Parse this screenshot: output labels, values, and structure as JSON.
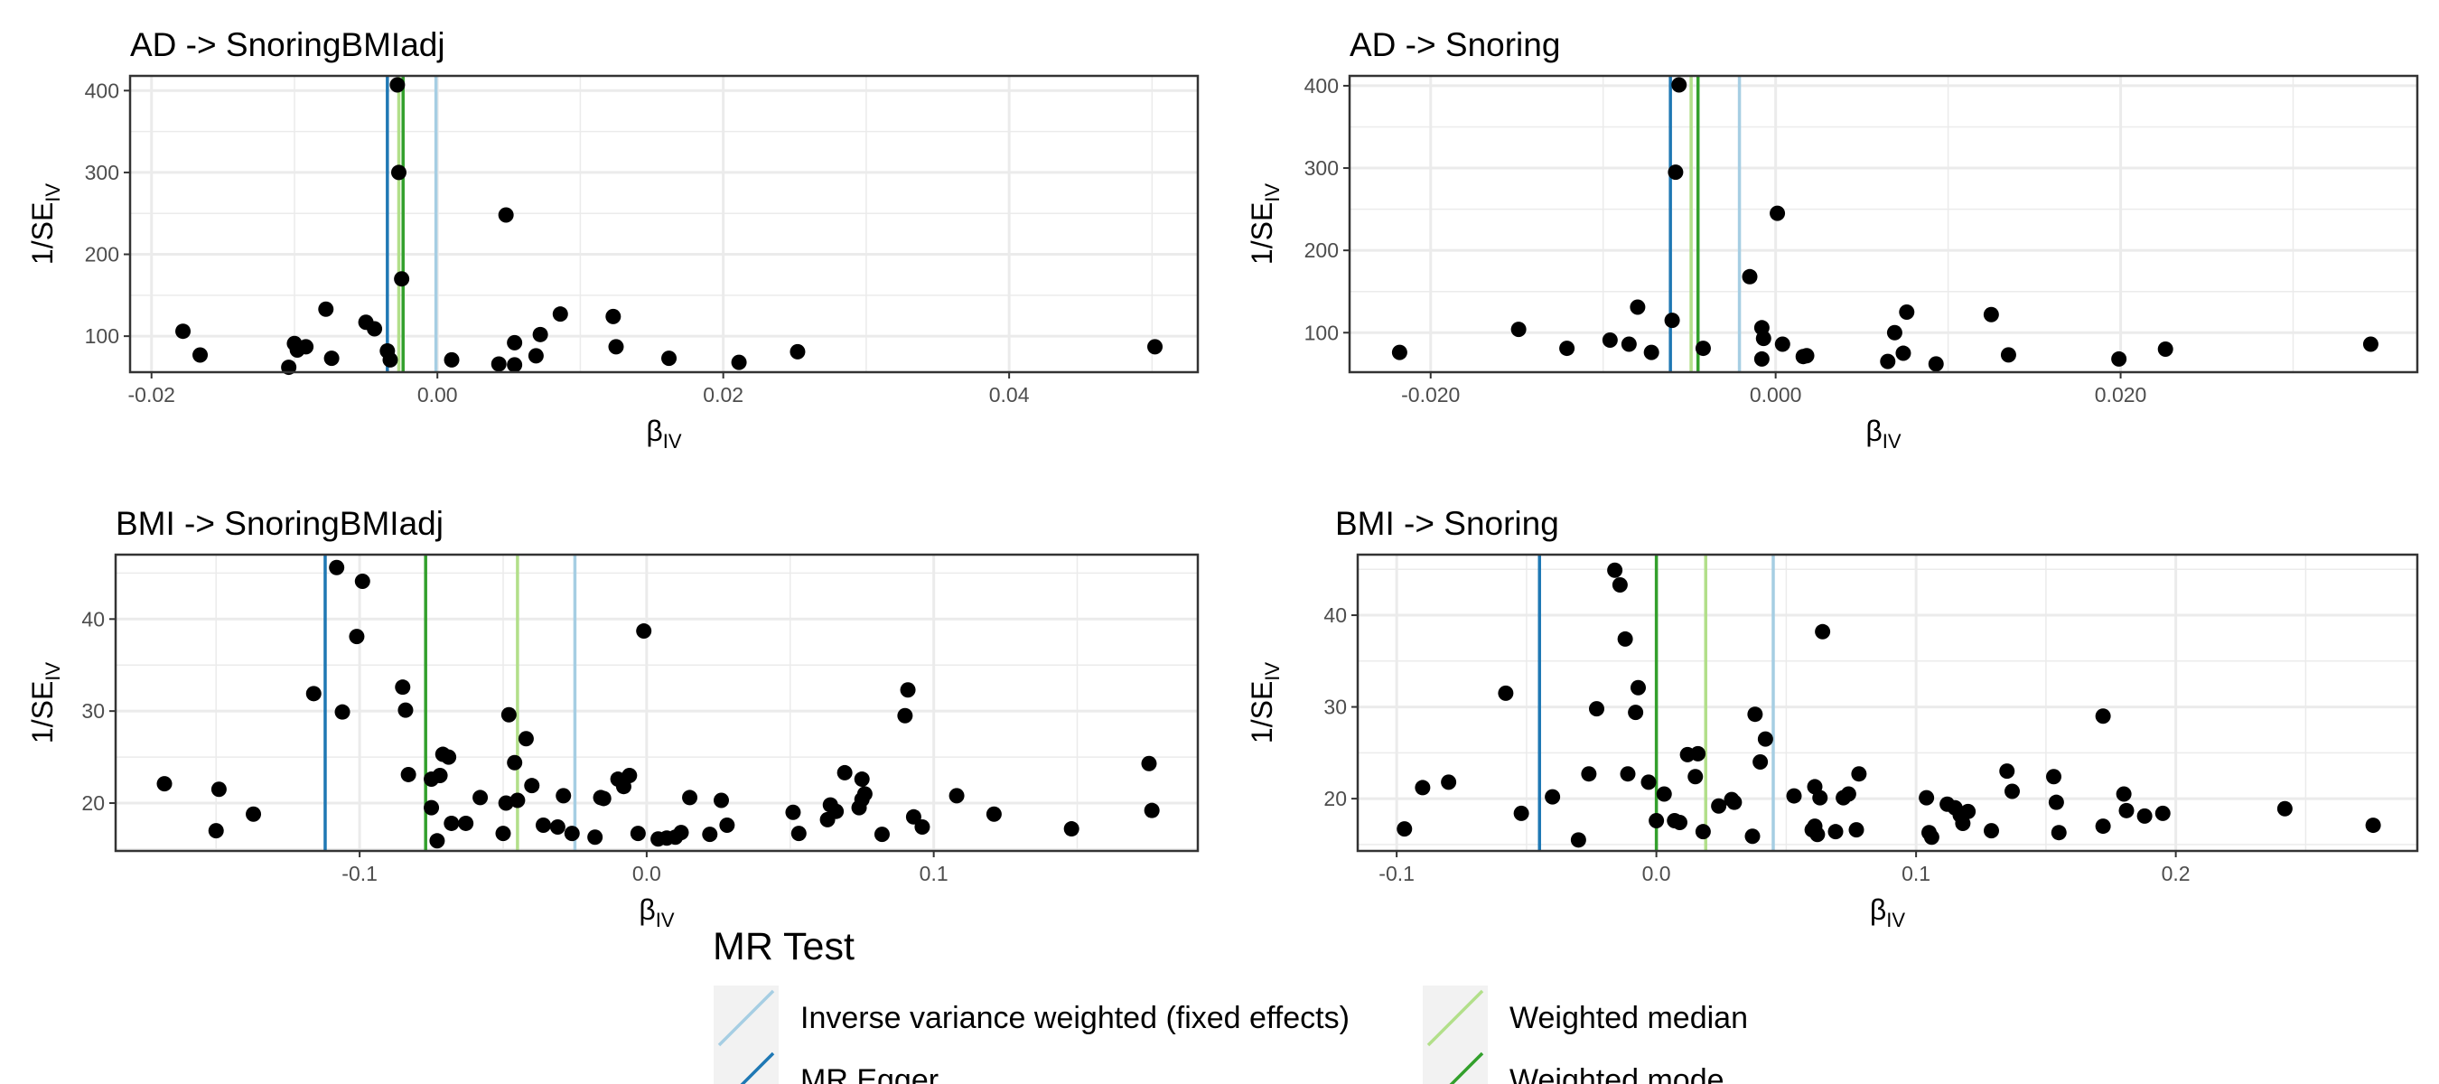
{
  "colors": {
    "ivw": "#a6cee3",
    "egger": "#1f78b4",
    "wmedian": "#b2df8a",
    "wmode": "#33a02c",
    "point": "#000000",
    "panel_border": "#333333",
    "grid": "#ebebeb"
  },
  "legend": {
    "title": "MR Test",
    "items": [
      {
        "label": "Inverse variance weighted (fixed effects)",
        "color_key": "ivw"
      },
      {
        "label": "Weighted median",
        "color_key": "wmedian"
      },
      {
        "label": "MR Egger",
        "color_key": "egger"
      },
      {
        "label": "Weighted mode",
        "color_key": "wmode"
      }
    ]
  },
  "chart_data": [
    {
      "type": "scatter",
      "title": "AD -> SnoringBMIadj",
      "xlabel": "βIV",
      "ylabel": "1/SEIV",
      "xlim": [
        -0.0215,
        0.0532
      ],
      "ylim": [
        56,
        418
      ],
      "xticks": [
        -0.02,
        0.0,
        0.02,
        0.04
      ],
      "xtick_labels": [
        "-0.02",
        "0.00",
        "0.02",
        "0.04"
      ],
      "yticks": [
        100,
        200,
        300,
        400
      ],
      "ytick_labels": [
        "100",
        "200",
        "300",
        "400"
      ],
      "grid": true,
      "lines": {
        "ivw": -0.0001,
        "egger": -0.0035,
        "wmedian": -0.0027,
        "wmode": -0.0024
      },
      "points": [
        [
          -0.0178,
          106
        ],
        [
          -0.0166,
          77
        ],
        [
          -0.0104,
          62
        ],
        [
          -0.01,
          91
        ],
        [
          -0.0098,
          83
        ],
        [
          -0.0092,
          87
        ],
        [
          -0.0078,
          133
        ],
        [
          -0.0074,
          73
        ],
        [
          -0.005,
          117
        ],
        [
          -0.0044,
          109
        ],
        [
          -0.0035,
          82
        ],
        [
          -0.0033,
          71
        ],
        [
          -0.0028,
          407
        ],
        [
          -0.0027,
          300
        ],
        [
          -0.0025,
          170
        ],
        [
          0.001,
          71
        ],
        [
          0.0043,
          66
        ],
        [
          0.0048,
          248
        ],
        [
          0.0054,
          92
        ],
        [
          0.0054,
          65
        ],
        [
          0.0069,
          76
        ],
        [
          0.0072,
          102
        ],
        [
          0.0086,
          127
        ],
        [
          0.0123,
          124
        ],
        [
          0.0125,
          87
        ],
        [
          0.0162,
          73
        ],
        [
          0.0211,
          68
        ],
        [
          0.0252,
          81
        ],
        [
          0.0502,
          87
        ]
      ]
    },
    {
      "type": "scatter",
      "title": "AD -> Snoring",
      "xlabel": "βIV",
      "ylabel": "1/SEIV",
      "xlim": [
        -0.0247,
        0.0372
      ],
      "ylim": [
        52,
        412
      ],
      "xticks": [
        -0.02,
        0.0,
        0.02
      ],
      "xtick_labels": [
        "-0.020",
        "0.000",
        "0.020"
      ],
      "yticks": [
        100,
        200,
        300,
        400
      ],
      "ytick_labels": [
        "100",
        "200",
        "300",
        "400"
      ],
      "grid": true,
      "lines": {
        "ivw": -0.0021,
        "egger": -0.0061,
        "wmedian": -0.0049,
        "wmode": -0.0045
      },
      "points": [
        [
          -0.0218,
          76
        ],
        [
          -0.0149,
          104
        ],
        [
          -0.0121,
          81
        ],
        [
          -0.0096,
          91
        ],
        [
          -0.0085,
          86
        ],
        [
          -0.008,
          131
        ],
        [
          -0.0072,
          76
        ],
        [
          -0.006,
          115
        ],
        [
          -0.0058,
          295
        ],
        [
          -0.0056,
          401
        ],
        [
          -0.0042,
          81
        ],
        [
          -0.0008,
          106
        ],
        [
          -0.0007,
          93
        ],
        [
          -0.0008,
          68
        ],
        [
          0.0004,
          86
        ],
        [
          0.0001,
          245
        ],
        [
          -0.0015,
          168
        ],
        [
          0.0016,
          71
        ],
        [
          0.0018,
          72
        ],
        [
          0.0065,
          65
        ],
        [
          0.0069,
          100
        ],
        [
          0.0074,
          75
        ],
        [
          0.0076,
          125
        ],
        [
          0.0093,
          62
        ],
        [
          0.0125,
          122
        ],
        [
          0.0135,
          73
        ],
        [
          0.0199,
          68
        ],
        [
          0.0226,
          80
        ],
        [
          0.0345,
          86
        ]
      ]
    },
    {
      "type": "scatter",
      "title": "BMI -> SnoringBMIadj",
      "xlabel": "βIV",
      "ylabel": "1/SEIV",
      "xlim": [
        -0.185,
        0.192
      ],
      "ylim": [
        14.8,
        47.0
      ],
      "xticks": [
        -0.1,
        0.0,
        0.1
      ],
      "xtick_labels": [
        "-0.1",
        "0.0",
        "0.1"
      ],
      "yticks": [
        20,
        30,
        40
      ],
      "ytick_labels": [
        "20",
        "30",
        "40"
      ],
      "grid": true,
      "lines": {
        "ivw": -0.025,
        "egger": -0.112,
        "wmedian": -0.045,
        "wmode": -0.077
      },
      "points": [
        [
          -0.168,
          22.1
        ],
        [
          -0.15,
          17.0
        ],
        [
          -0.149,
          21.5
        ],
        [
          -0.137,
          18.8
        ],
        [
          -0.116,
          31.9
        ],
        [
          -0.108,
          45.6
        ],
        [
          -0.106,
          29.9
        ],
        [
          -0.101,
          38.1
        ],
        [
          -0.099,
          44.1
        ],
        [
          -0.085,
          32.6
        ],
        [
          -0.084,
          30.1
        ],
        [
          -0.083,
          23.1
        ],
        [
          -0.075,
          22.6
        ],
        [
          -0.075,
          19.5
        ],
        [
          -0.073,
          15.9
        ],
        [
          -0.072,
          23.0
        ],
        [
          -0.071,
          25.3
        ],
        [
          -0.069,
          25.0
        ],
        [
          -0.068,
          17.8
        ],
        [
          -0.063,
          17.8
        ],
        [
          -0.058,
          20.6
        ],
        [
          -0.05,
          16.7
        ],
        [
          -0.049,
          20.0
        ],
        [
          -0.048,
          29.6
        ],
        [
          -0.046,
          24.4
        ],
        [
          -0.045,
          20.3
        ],
        [
          -0.042,
          27.0
        ],
        [
          -0.04,
          21.9
        ],
        [
          -0.036,
          17.6
        ],
        [
          -0.031,
          17.4
        ],
        [
          -0.029,
          20.8
        ],
        [
          -0.026,
          16.7
        ],
        [
          -0.018,
          16.3
        ],
        [
          -0.016,
          20.6
        ],
        [
          -0.015,
          20.5
        ],
        [
          -0.01,
          22.6
        ],
        [
          -0.008,
          21.8
        ],
        [
          -0.006,
          23.0
        ],
        [
          -0.003,
          16.7
        ],
        [
          -0.001,
          38.7
        ],
        [
          0.004,
          16.1
        ],
        [
          0.007,
          16.2
        ],
        [
          0.01,
          16.3
        ],
        [
          0.012,
          16.8
        ],
        [
          0.015,
          20.6
        ],
        [
          0.022,
          16.6
        ],
        [
          0.026,
          20.3
        ],
        [
          0.028,
          17.6
        ],
        [
          0.051,
          19.0
        ],
        [
          0.053,
          16.7
        ],
        [
          0.063,
          18.2
        ],
        [
          0.064,
          19.8
        ],
        [
          0.066,
          19.1
        ],
        [
          0.069,
          23.3
        ],
        [
          0.074,
          19.5
        ],
        [
          0.075,
          20.4
        ],
        [
          0.075,
          22.6
        ],
        [
          0.076,
          21.0
        ],
        [
          0.082,
          16.6
        ],
        [
          0.09,
          29.5
        ],
        [
          0.091,
          32.3
        ],
        [
          0.093,
          18.5
        ],
        [
          0.096,
          17.4
        ],
        [
          0.108,
          20.8
        ],
        [
          0.121,
          18.8
        ],
        [
          0.148,
          17.2
        ],
        [
          0.175,
          24.3
        ],
        [
          0.176,
          19.2
        ]
      ]
    },
    {
      "type": "scatter",
      "title": "BMI -> Snoring",
      "xlabel": "βIV",
      "ylabel": "1/SEIV",
      "xlim": [
        -0.115,
        0.293
      ],
      "ylim": [
        14.3,
        46.6
      ],
      "xticks": [
        -0.1,
        0.0,
        0.1,
        0.2
      ],
      "xtick_labels": [
        "-0.1",
        "0.0",
        "0.1",
        "0.2"
      ],
      "yticks": [
        20,
        30,
        40
      ],
      "ytick_labels": [
        "20",
        "30",
        "40"
      ],
      "grid": true,
      "lines": {
        "ivw": 0.045,
        "egger": -0.045,
        "wmedian": 0.019,
        "wmode": 0.0
      },
      "points": [
        [
          -0.097,
          16.7
        ],
        [
          -0.09,
          21.2
        ],
        [
          -0.08,
          21.8
        ],
        [
          -0.058,
          31.5
        ],
        [
          -0.052,
          18.4
        ],
        [
          -0.04,
          20.2
        ],
        [
          -0.03,
          15.5
        ],
        [
          -0.026,
          22.7
        ],
        [
          -0.023,
          29.8
        ],
        [
          -0.016,
          44.9
        ],
        [
          -0.014,
          43.3
        ],
        [
          -0.012,
          37.4
        ],
        [
          -0.011,
          22.7
        ],
        [
          -0.008,
          29.4
        ],
        [
          -0.007,
          32.1
        ],
        [
          -0.003,
          21.8
        ],
        [
          0.0,
          17.6
        ],
        [
          0.003,
          20.5
        ],
        [
          0.007,
          17.6
        ],
        [
          0.009,
          17.4
        ],
        [
          0.012,
          24.8
        ],
        [
          0.015,
          22.4
        ],
        [
          0.016,
          24.9
        ],
        [
          0.018,
          16.4
        ],
        [
          0.024,
          19.2
        ],
        [
          0.029,
          19.9
        ],
        [
          0.03,
          19.6
        ],
        [
          0.037,
          15.9
        ],
        [
          0.038,
          29.2
        ],
        [
          0.04,
          24.0
        ],
        [
          0.042,
          26.5
        ],
        [
          0.053,
          20.3
        ],
        [
          0.06,
          16.6
        ],
        [
          0.061,
          21.3
        ],
        [
          0.061,
          17.0
        ],
        [
          0.063,
          20.1
        ],
        [
          0.062,
          16.1
        ],
        [
          0.064,
          38.2
        ],
        [
          0.069,
          16.4
        ],
        [
          0.072,
          20.1
        ],
        [
          0.074,
          20.5
        ],
        [
          0.077,
          16.6
        ],
        [
          0.078,
          22.7
        ],
        [
          0.104,
          20.1
        ],
        [
          0.105,
          16.3
        ],
        [
          0.106,
          15.8
        ],
        [
          0.112,
          19.4
        ],
        [
          0.115,
          19.0
        ],
        [
          0.117,
          18.2
        ],
        [
          0.118,
          17.3
        ],
        [
          0.12,
          18.6
        ],
        [
          0.129,
          16.5
        ],
        [
          0.135,
          23.0
        ],
        [
          0.137,
          20.8
        ],
        [
          0.153,
          22.4
        ],
        [
          0.154,
          19.6
        ],
        [
          0.155,
          16.3
        ],
        [
          0.172,
          29.0
        ],
        [
          0.172,
          17.0
        ],
        [
          0.18,
          20.5
        ],
        [
          0.181,
          18.7
        ],
        [
          0.188,
          18.1
        ],
        [
          0.195,
          18.4
        ],
        [
          0.242,
          18.9
        ],
        [
          0.276,
          17.1
        ]
      ]
    }
  ]
}
